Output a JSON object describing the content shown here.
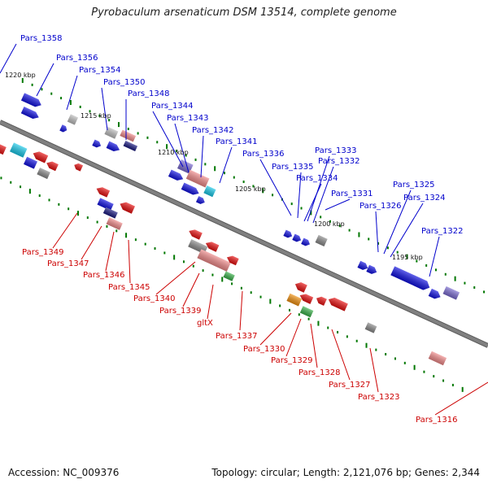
{
  "title": "Pyrobaculum arsenaticum DSM 13514, complete genome",
  "footer": {
    "accession": "Accession: NC_009376",
    "topology": "Topology: circular; Length: 2,121,076 bp; Genes: 2,344"
  },
  "colors": {
    "forward_label": "#0000cc",
    "reverse_label": "#cc0000",
    "backbone": "#808080",
    "tick": "#007700",
    "blue": "#1010e0",
    "red": "#e81010",
    "pink": "#f08a8a",
    "gray": "#8a8a8a",
    "lightgray": "#bdbdbd",
    "cyan": "#19c8e8",
    "purple": "#7a6bd0",
    "darkblue": "#1a1a80",
    "green": "#39b049",
    "orange": "#f09010"
  },
  "scale_labels": [
    "1220 kbp",
    "1215 kbp",
    "1210 kbp",
    "1205 kbp",
    "1200 kbp",
    "1195 kbp"
  ],
  "forward_genes": [
    "Pars_1358",
    "Pars_1356",
    "Pars_1354",
    "Pars_1350",
    "Pars_1348",
    "Pars_1344",
    "Pars_1343",
    "Pars_1342",
    "Pars_1341",
    "Pars_1336",
    "Pars_1335",
    "Pars_1334",
    "Pars_1333",
    "Pars_1332",
    "Pars_1331",
    "Pars_1326",
    "Pars_1325",
    "Pars_1324",
    "Pars_1322"
  ],
  "reverse_genes": [
    "Pars_1349",
    "Pars_1347",
    "Pars_1346",
    "Pars_1345",
    "Pars_1340",
    "Pars_1339",
    "gltX",
    "Pars_1337",
    "Pars_1330",
    "Pars_1329",
    "Pars_1328",
    "Pars_1327",
    "Pars_1323",
    "Pars_1316"
  ]
}
